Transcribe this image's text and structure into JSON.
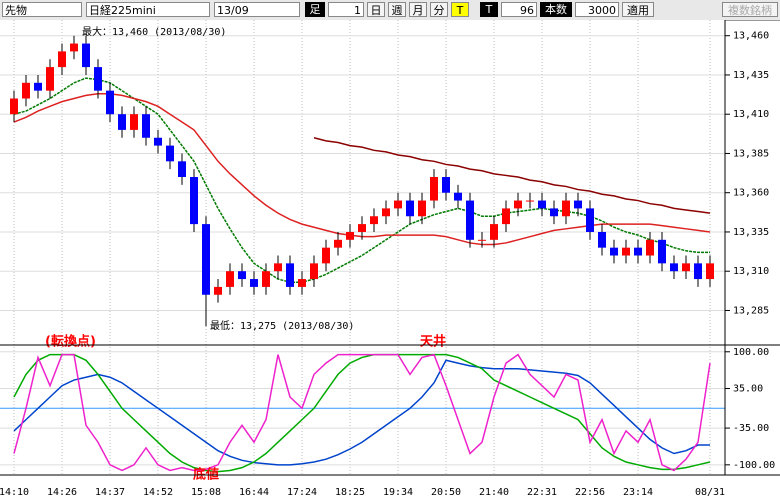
{
  "toolbar": {
    "market": "先物",
    "symbol": "日経225mini",
    "contract": "13/09",
    "bar_label": "足",
    "bar_size": "1",
    "day": "日",
    "week": "週",
    "month": "月",
    "minute": "分",
    "tick": "T",
    "tick2": "T",
    "count_value": "96",
    "count_label": "本数",
    "bars": "3000",
    "apply": "適用",
    "multi": "複数銘柄"
  },
  "chart_data": [
    {
      "type": "candlestick",
      "annotations": [
        "最大：13,460 (2013/08/30)",
        "最低：13,275 (2013/08/30)",
        "(転換点)",
        "天井"
      ],
      "categories": [
        "14:10",
        null,
        null,
        null,
        "14:26",
        null,
        null,
        null,
        "14:37",
        null,
        null,
        null,
        "14:52",
        null,
        null,
        null,
        "15:08",
        null,
        null,
        null,
        "16:44",
        null,
        null,
        null,
        "17:24",
        null,
        null,
        null,
        "18:25",
        null,
        null,
        null,
        "19:34",
        null,
        null,
        null,
        "20:50",
        null,
        null,
        null,
        "21:40",
        null,
        null,
        null,
        "22:31",
        null,
        null,
        null,
        "22:56",
        null,
        null,
        null,
        "23:14",
        null,
        null,
        null,
        null,
        null,
        "08/31"
      ],
      "open": [
        13410,
        13420,
        13430,
        13425,
        13440,
        13450,
        13455,
        13440,
        13425,
        13410,
        13400,
        13410,
        13395,
        13390,
        13380,
        13370,
        13340,
        13295,
        13300,
        13310,
        13305,
        13300,
        13310,
        13315,
        13300,
        13305,
        13315,
        13325,
        13330,
        13335,
        13340,
        13345,
        13350,
        13355,
        13345,
        13355,
        13370,
        13360,
        13355,
        13330,
        13330,
        13340,
        13350,
        13355,
        13355,
        13350,
        13345,
        13355,
        13350,
        13335,
        13325,
        13320,
        13325,
        13320,
        13330,
        13315,
        13310,
        13315,
        13305
      ],
      "high": [
        13425,
        13435,
        13435,
        13445,
        13455,
        13460,
        13460,
        13445,
        13430,
        13415,
        13415,
        13415,
        13400,
        13395,
        13385,
        13375,
        13345,
        13305,
        13315,
        13315,
        13310,
        13315,
        13320,
        13320,
        13310,
        13320,
        13330,
        13335,
        13340,
        13345,
        13350,
        13355,
        13360,
        13360,
        13360,
        13375,
        13375,
        13365,
        13360,
        13335,
        13345,
        13355,
        13360,
        13360,
        13360,
        13355,
        13360,
        13360,
        13355,
        13340,
        13330,
        13330,
        13330,
        13335,
        13335,
        13320,
        13320,
        13320,
        13320
      ],
      "low": [
        13405,
        13415,
        13420,
        13420,
        13435,
        13445,
        13435,
        13420,
        13405,
        13395,
        13395,
        13390,
        13385,
        13375,
        13365,
        13335,
        13275,
        13290,
        13295,
        13300,
        13295,
        13295,
        13305,
        13295,
        13295,
        13300,
        13310,
        13320,
        13325,
        13330,
        13335,
        13340,
        13345,
        13340,
        13340,
        13350,
        13355,
        13350,
        13325,
        13325,
        13325,
        13335,
        13345,
        13350,
        13345,
        13340,
        13340,
        13345,
        13330,
        13320,
        13315,
        13315,
        13315,
        13315,
        13310,
        13305,
        13305,
        13300,
        13300
      ],
      "close": [
        13420,
        13430,
        13425,
        13440,
        13450,
        13455,
        13440,
        13425,
        13410,
        13400,
        13410,
        13395,
        13390,
        13380,
        13370,
        13340,
        13295,
        13300,
        13310,
        13305,
        13300,
        13310,
        13315,
        13300,
        13305,
        13315,
        13325,
        13330,
        13335,
        13340,
        13345,
        13350,
        13355,
        13345,
        13355,
        13370,
        13360,
        13355,
        13330,
        13330,
        13340,
        13350,
        13355,
        13355,
        13350,
        13345,
        13355,
        13350,
        13335,
        13325,
        13320,
        13325,
        13320,
        13330,
        13315,
        13310,
        13315,
        13305,
        13315
      ],
      "up_color": "#ff0000",
      "down_color": "#0000ff",
      "overlays": [
        {
          "color": "#007a00",
          "values": [
            13410,
            13412,
            13416,
            13420,
            13425,
            13430,
            13433,
            13432,
            13430,
            13425,
            13420,
            13415,
            13410,
            13400,
            13390,
            13380,
            13365,
            13350,
            13337,
            13325,
            13315,
            13310,
            13305,
            13303,
            13303,
            13305,
            13308,
            13312,
            13316,
            13320,
            13325,
            13330,
            13335,
            13340,
            13343,
            13346,
            13348,
            13350,
            13348,
            13345,
            13345,
            13347,
            13348,
            13349,
            13350,
            13349,
            13348,
            13347,
            13345,
            13342,
            13338,
            13335,
            13333,
            13330,
            13328,
            13325,
            13323,
            13322,
            13322
          ]
        },
        {
          "color": "#dd2222",
          "values": [
            13405,
            13408,
            13412,
            13415,
            13418,
            13420,
            13422,
            13423,
            13423,
            13422,
            13420,
            13418,
            13415,
            13410,
            13405,
            13400,
            13390,
            13380,
            13372,
            13365,
            13358,
            13352,
            13347,
            13343,
            13340,
            13338,
            13336,
            13334,
            13333,
            13332,
            13332,
            13333,
            13333,
            13333,
            13333,
            13333,
            13332,
            13330,
            13328,
            13327,
            13327,
            13328,
            13330,
            13332,
            13334,
            13336,
            13337,
            13338,
            13339,
            13340,
            13340,
            13340,
            13340,
            13340,
            13339,
            13338,
            13337,
            13336,
            13335
          ]
        },
        {
          "color": "#8b0000",
          "values": [
            null,
            null,
            null,
            null,
            null,
            null,
            null,
            null,
            null,
            null,
            null,
            null,
            null,
            null,
            null,
            null,
            null,
            null,
            null,
            null,
            null,
            null,
            null,
            null,
            null,
            13395,
            13393,
            13392,
            13390,
            13389,
            13387,
            13386,
            13384,
            13383,
            13381,
            13380,
            13378,
            13377,
            13375,
            13374,
            13372,
            13371,
            13370,
            13368,
            13367,
            13365,
            13364,
            13362,
            13361,
            13359,
            13358,
            13356,
            13355,
            13353,
            13352,
            13350,
            13349,
            13348,
            13347
          ]
        }
      ],
      "ylim": [
        13263,
        13470
      ],
      "yticks": [
        {
          "value": 13460,
          "label": "13,460"
        },
        {
          "value": 13435,
          "label": "13,435"
        },
        {
          "value": 13410,
          "label": "13,410"
        },
        {
          "value": 13385,
          "label": "13,385"
        },
        {
          "value": 13360,
          "label": "13,360"
        },
        {
          "value": 13335,
          "label": "13,335"
        },
        {
          "value": 13310,
          "label": "13,310"
        },
        {
          "value": 13285,
          "label": "13,285"
        }
      ],
      "grid": true
    },
    {
      "type": "line",
      "annotations": [
        "底値"
      ],
      "series": [
        {
          "color": "#0044cc",
          "values": [
            -40,
            -20,
            0,
            20,
            40,
            50,
            55,
            60,
            55,
            45,
            30,
            15,
            0,
            -15,
            -30,
            -45,
            -60,
            -75,
            -85,
            -92,
            -96,
            -98,
            -100,
            -100,
            -98,
            -95,
            -90,
            -82,
            -72,
            -60,
            -45,
            -30,
            -15,
            0,
            20,
            45,
            85,
            80,
            75,
            72,
            70,
            70,
            70,
            68,
            66,
            64,
            62,
            58,
            45,
            25,
            5,
            -15,
            -35,
            -55,
            -70,
            -80,
            -75,
            -65,
            -65
          ]
        },
        {
          "color": "#00aa00",
          "values": [
            20,
            60,
            85,
            95,
            95,
            95,
            85,
            60,
            30,
            0,
            -20,
            -40,
            -60,
            -80,
            -95,
            -105,
            -110,
            -112,
            -110,
            -105,
            -95,
            -80,
            -60,
            -40,
            -20,
            0,
            30,
            60,
            80,
            90,
            95,
            95,
            95,
            95,
            95,
            95,
            95,
            90,
            80,
            70,
            50,
            40,
            30,
            20,
            10,
            0,
            -10,
            -20,
            -45,
            -70,
            -85,
            -95,
            -100,
            -105,
            -108,
            -108,
            -105,
            -100,
            -95
          ]
        },
        {
          "color": "#ee22cc",
          "values": [
            -80,
            0,
            90,
            40,
            95,
            95,
            -30,
            -60,
            -100,
            -110,
            -100,
            -70,
            -100,
            -110,
            -105,
            -110,
            -108,
            -100,
            -60,
            -30,
            -60,
            -20,
            95,
            20,
            0,
            60,
            80,
            95,
            95,
            95,
            95,
            95,
            95,
            60,
            90,
            95,
            40,
            -20,
            -80,
            -60,
            20,
            80,
            95,
            60,
            40,
            20,
            60,
            50,
            -60,
            -20,
            -80,
            -40,
            -60,
            -20,
            -100,
            -110,
            -90,
            -60,
            80
          ]
        }
      ],
      "reference_line": 0,
      "ylim": [
        -118,
        112
      ],
      "yticks": [
        {
          "value": 100,
          "label": "100.00"
        },
        {
          "value": 35,
          "label": "35.00"
        },
        {
          "value": -35,
          "label": "-35.00"
        },
        {
          "value": -100,
          "label": "-100.00"
        }
      ]
    }
  ]
}
